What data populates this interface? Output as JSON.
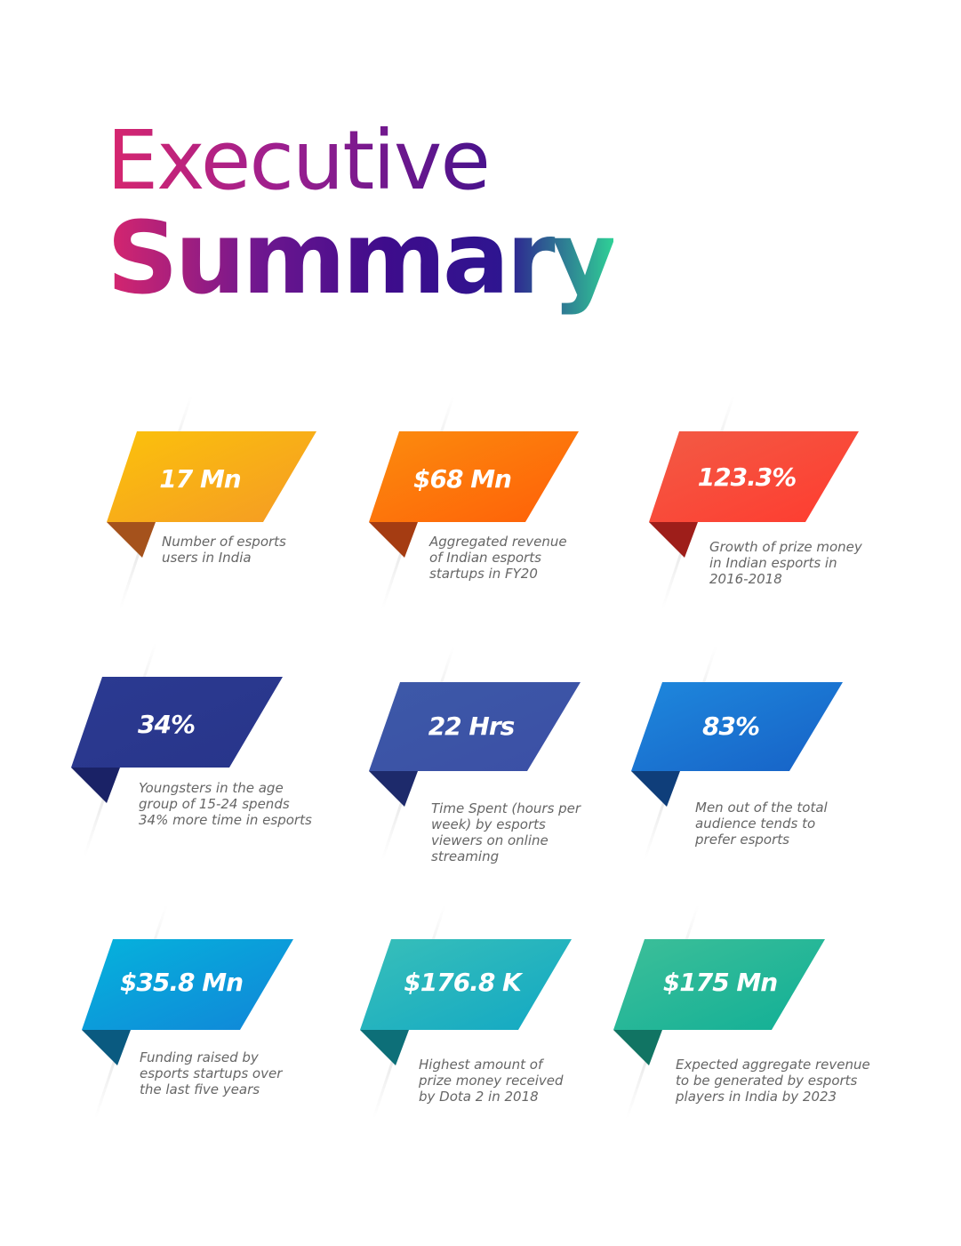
{
  "title": {
    "line1": "Executive",
    "line2": "Summary"
  },
  "stats": [
    {
      "value": "17 Mn",
      "description": "Number of esports\nusers in India",
      "color_start": "#fbc20b",
      "color_end": "#f59a25"
    },
    {
      "value": "$68 Mn",
      "description": "Aggregated revenue\nof Indian esports\nstartups in FY20",
      "color_start": "#fb8c0e",
      "color_end": "#ff5f08"
    },
    {
      "value": "123.3%",
      "description": "Growth of prize money\nin Indian esports  in\n2016-2018",
      "color_start": "#f25b45",
      "color_end": "#ff3b2f"
    },
    {
      "value": "34%",
      "description": "Youngsters in the age\ngroup of 15-24 spends\n34% more time in esports",
      "color_start": "#2b3a91",
      "color_end": "#28358a"
    },
    {
      "value": "22 Hrs",
      "description": "Time Spent (hours per\nweek) by esports\nviewers on online\nstreaming",
      "color_start": "#3d59a8",
      "color_end": "#3b4fa5"
    },
    {
      "value": "83%",
      "description": "Men out of the total\naudience tends to\nprefer esports",
      "color_start": "#1e88dd",
      "color_end": "#1761c6"
    },
    {
      "value": "$35.8 Mn",
      "description": "Funding raised by\nesports startups over\nthe last five years",
      "color_start": "#05b3dc",
      "color_end": "#1185d8"
    },
    {
      "value": "$176.8 K",
      "description": "Highest amount of\nprize money received\nby Dota 2 in 2018",
      "color_start": "#38bfb9",
      "color_end": "#12a8c4"
    },
    {
      "value": "$175 Mn",
      "description": "Expected aggregate revenue\nto be generated by esports\nplayers in India by 2023",
      "color_start": "#3dbf99",
      "color_end": "#11af96"
    }
  ]
}
